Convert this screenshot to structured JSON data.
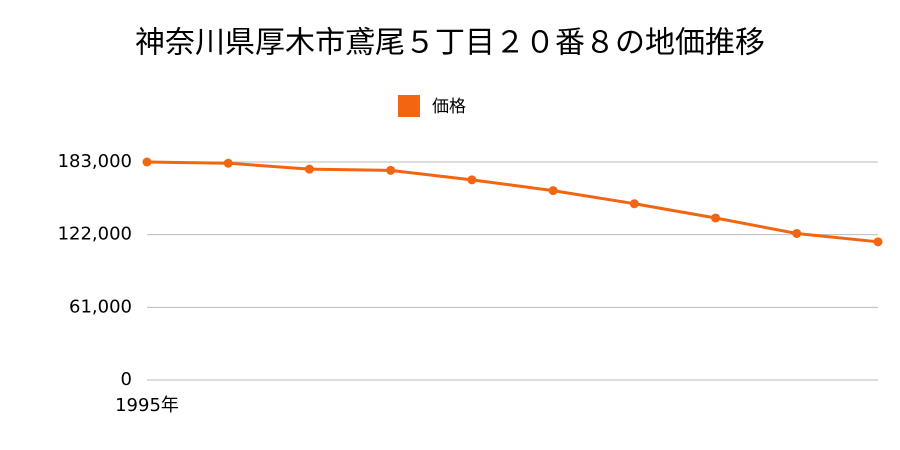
{
  "chart_data": {
    "type": "line",
    "title": "神奈川県厚木市鳶尾５丁目２０番８の地価推移",
    "categories": [
      "1995年",
      null,
      null,
      null,
      null,
      null,
      null,
      null,
      null,
      null
    ],
    "series": [
      {
        "name": "価格",
        "color": "#f26511",
        "values": [
          183000,
          182000,
          177000,
          176000,
          168000,
          159000,
          148000,
          136000,
          123000,
          116000
        ]
      }
    ],
    "ylim": [
      0,
      183000
    ],
    "yticks": [
      0,
      {
        "value": 61000,
        "label": "61,000"
      },
      {
        "value": 122000,
        "label": "122,000"
      },
      {
        "value": 183000,
        "label": "183,000"
      }
    ],
    "grid": true
  }
}
